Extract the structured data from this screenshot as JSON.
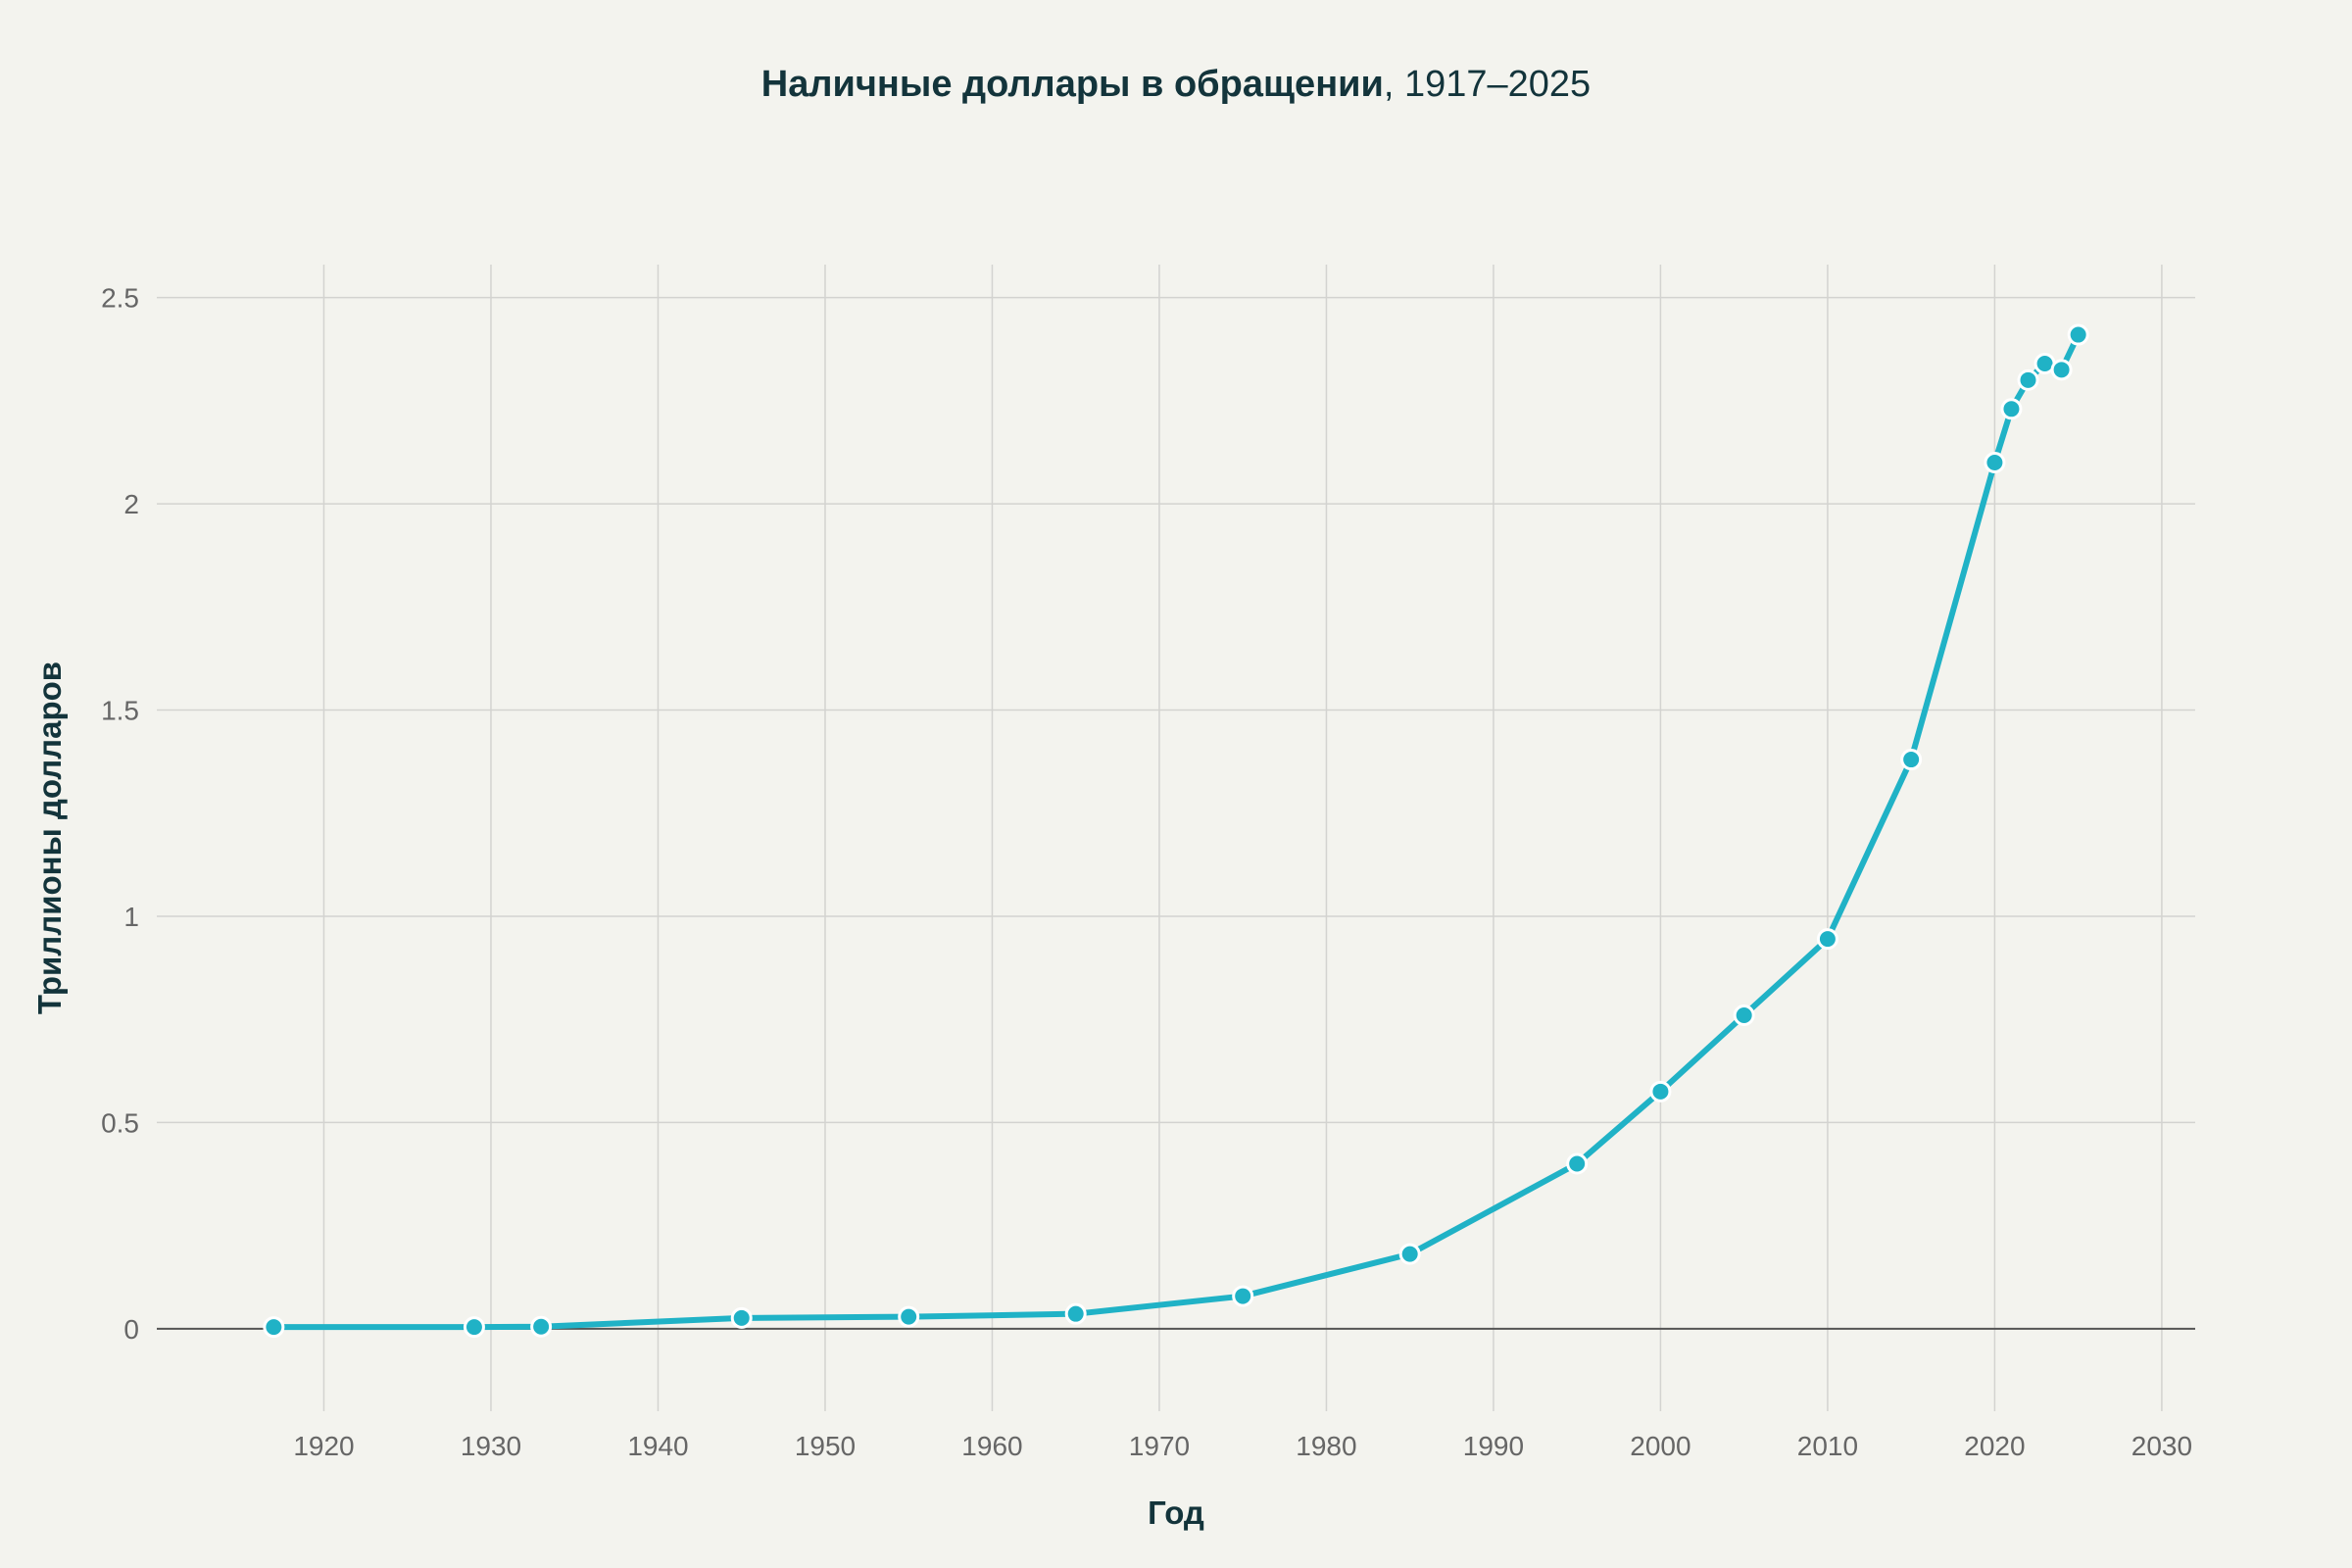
{
  "chart_data": {
    "type": "line",
    "title_bold": "Наличные доллары в обращении",
    "title_rest": ", 1917–2025",
    "xlabel": "Год",
    "ylabel": "Триллионы долларов",
    "xlim": [
      1910,
      2032
    ],
    "ylim": [
      -0.2,
      2.58
    ],
    "xticks": [
      1920,
      1930,
      1940,
      1950,
      1960,
      1970,
      1980,
      1990,
      2000,
      2010,
      2020,
      2030
    ],
    "yticks": [
      0,
      0.5,
      1,
      1.5,
      2,
      2.5
    ],
    "ytick_labels": [
      "0",
      "0.5",
      "1",
      "1.5",
      "2",
      "2.5"
    ],
    "grid": true,
    "color": "#20b2c6",
    "series": [
      {
        "x": [
          1917,
          1929,
          1933,
          1945,
          1955,
          1965,
          1975,
          1985,
          1995,
          2000,
          2005,
          2010,
          2015,
          2020,
          2021,
          2022,
          2023,
          2024,
          2025
        ],
        "y": [
          0.004,
          0.004,
          0.005,
          0.026,
          0.029,
          0.036,
          0.079,
          0.181,
          0.4,
          0.575,
          0.76,
          0.945,
          1.38,
          2.1,
          2.23,
          2.3,
          2.34,
          2.325,
          2.41
        ]
      }
    ]
  }
}
